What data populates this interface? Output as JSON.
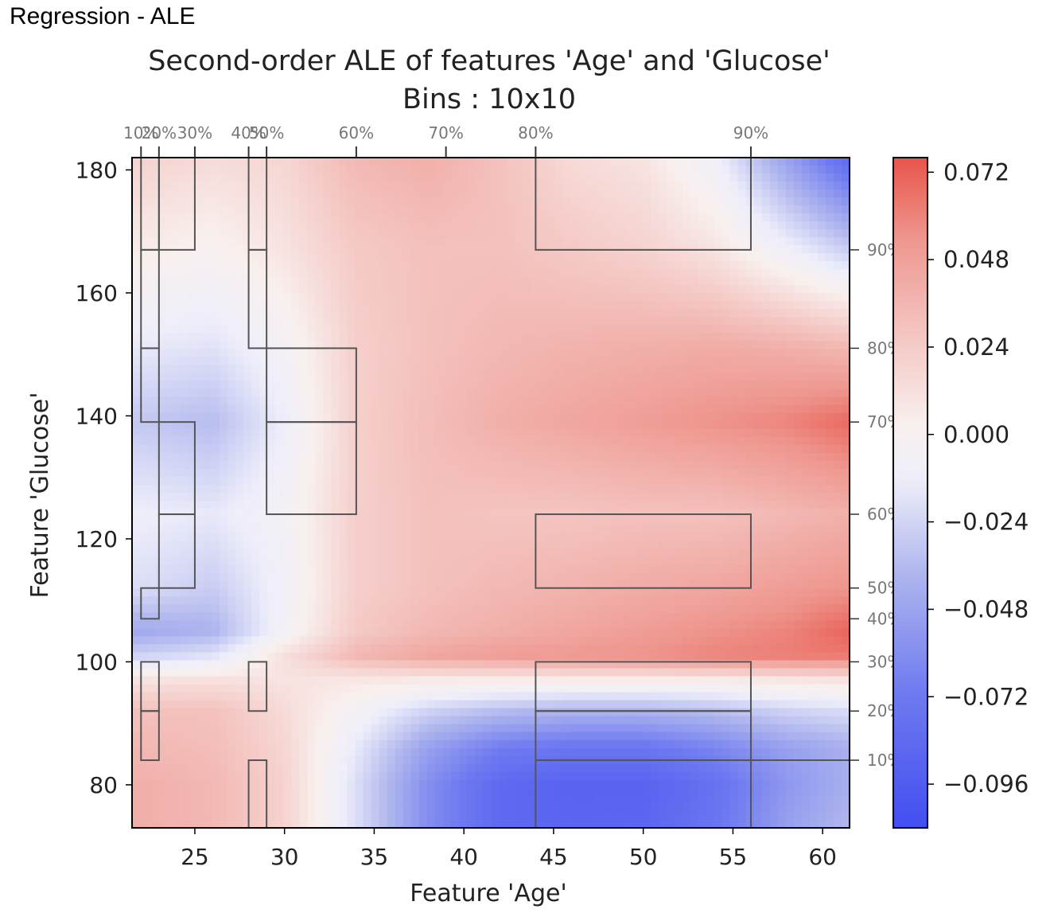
{
  "page_title": "Regression - ALE",
  "chart_data": {
    "type": "heatmap",
    "title": "Second-order ALE of features 'Age' and 'Glucose'",
    "subtitle": "Bins : 10x10",
    "xlabel": "Feature 'Age'",
    "ylabel": "Feature 'Glucose'",
    "xlim": [
      21.5,
      61.5
    ],
    "ylim": [
      73,
      182
    ],
    "x_ticks": [
      25,
      30,
      35,
      40,
      45,
      50,
      55,
      60
    ],
    "y_ticks": [
      80,
      100,
      120,
      140,
      160,
      180
    ],
    "x_quantiles": [
      {
        "label": "10%",
        "value": 22
      },
      {
        "label": "20%",
        "value": 23
      },
      {
        "label": "30%",
        "value": 25
      },
      {
        "label": "40%",
        "value": 28
      },
      {
        "label": "50%",
        "value": 29
      },
      {
        "label": "60%",
        "value": 34
      },
      {
        "label": "70%",
        "value": 39
      },
      {
        "label": "80%",
        "value": 44
      },
      {
        "label": "90%",
        "value": 56
      }
    ],
    "y_quantiles": [
      {
        "label": "10%",
        "value": 84
      },
      {
        "label": "20%",
        "value": 92
      },
      {
        "label": "30%",
        "value": 100
      },
      {
        "label": "40%",
        "value": 107
      },
      {
        "label": "50%",
        "value": 112
      },
      {
        "label": "60%",
        "value": 124
      },
      {
        "label": "70%",
        "value": 139
      },
      {
        "label": "80%",
        "value": 151
      },
      {
        "label": "90%",
        "value": 167
      }
    ],
    "colorbar": {
      "min": -0.108,
      "max": 0.076,
      "ticks": [
        "0.072",
        "0.048",
        "0.024",
        "0.000",
        "−0.024",
        "−0.048",
        "−0.072",
        "−0.096"
      ],
      "tick_values": [
        0.072,
        0.048,
        0.024,
        0.0,
        -0.024,
        -0.048,
        -0.072,
        -0.096
      ],
      "colormap": "coolwarm",
      "low_color": "#3b4cf0",
      "high_color": "#e8544a"
    },
    "grid_x": [
      22,
      26,
      30,
      34,
      38,
      42,
      46,
      50,
      54,
      58,
      62
    ],
    "grid_y": [
      73,
      80,
      86,
      92,
      97,
      101,
      105,
      112,
      124,
      139,
      151,
      167,
      182
    ],
    "grid_z": [
      [
        0.04,
        0.035,
        0.02,
        -0.02,
        -0.06,
        -0.085,
        -0.088,
        -0.087,
        -0.075,
        -0.05,
        -0.035
      ],
      [
        0.04,
        0.035,
        0.02,
        -0.02,
        -0.06,
        -0.085,
        -0.09,
        -0.09,
        -0.078,
        -0.055,
        -0.04
      ],
      [
        0.035,
        0.032,
        0.018,
        -0.015,
        -0.05,
        -0.07,
        -0.075,
        -0.075,
        -0.065,
        -0.05,
        -0.04
      ],
      [
        0.03,
        0.03,
        0.015,
        -0.005,
        -0.025,
        -0.035,
        -0.04,
        -0.04,
        -0.035,
        -0.025,
        -0.02
      ],
      [
        0.01,
        0.012,
        0.01,
        0.008,
        0.006,
        0.005,
        0.005,
        0.005,
        0.005,
        0.008,
        0.01
      ],
      [
        -0.025,
        -0.018,
        0.012,
        0.035,
        0.045,
        0.05,
        0.052,
        0.055,
        0.06,
        0.062,
        0.064
      ],
      [
        -0.045,
        -0.04,
        -0.005,
        0.025,
        0.035,
        0.04,
        0.045,
        0.05,
        0.055,
        0.06,
        0.072
      ],
      [
        -0.02,
        -0.028,
        -0.008,
        0.022,
        0.03,
        0.035,
        0.038,
        0.042,
        0.045,
        0.05,
        0.055
      ],
      [
        -0.012,
        -0.015,
        -0.005,
        0.022,
        0.03,
        0.028,
        0.028,
        0.03,
        0.03,
        0.035,
        0.04
      ],
      [
        -0.03,
        -0.035,
        -0.012,
        0.022,
        0.032,
        0.04,
        0.045,
        0.05,
        0.055,
        0.06,
        0.07
      ],
      [
        -0.015,
        -0.018,
        -0.005,
        0.022,
        0.03,
        0.035,
        0.038,
        0.04,
        0.042,
        0.04,
        0.035
      ],
      [
        0.005,
        0.0,
        0.01,
        0.025,
        0.03,
        0.03,
        0.025,
        0.02,
        0.01,
        -0.01,
        -0.03
      ],
      [
        0.02,
        0.015,
        0.018,
        0.035,
        0.04,
        0.03,
        0.015,
        0.01,
        -0.01,
        -0.05,
        -0.09
      ]
    ],
    "bin_rectangles": [
      {
        "x": [
          22,
          23
        ],
        "y": [
          167,
          182
        ]
      },
      {
        "x": [
          22,
          23
        ],
        "y": [
          151,
          167
        ]
      },
      {
        "x": [
          22,
          23
        ],
        "y": [
          139,
          151
        ]
      },
      {
        "x": [
          22,
          23
        ],
        "y": [
          107,
          112
        ]
      },
      {
        "x": [
          22,
          23
        ],
        "y": [
          92,
          100
        ]
      },
      {
        "x": [
          22,
          23
        ],
        "y": [
          84,
          92
        ]
      },
      {
        "x": [
          23,
          25
        ],
        "y": [
          167,
          182
        ]
      },
      {
        "x": [
          23,
          25
        ],
        "y": [
          124,
          139
        ]
      },
      {
        "x": [
          23,
          25
        ],
        "y": [
          112,
          124
        ]
      },
      {
        "x": [
          28,
          29
        ],
        "y": [
          167,
          182
        ]
      },
      {
        "x": [
          28,
          29
        ],
        "y": [
          151,
          167
        ]
      },
      {
        "x": [
          28,
          29
        ],
        "y": [
          92,
          100
        ]
      },
      {
        "x": [
          28,
          29
        ],
        "y": [
          73,
          84
        ]
      },
      {
        "x": [
          29,
          34
        ],
        "y": [
          139,
          151
        ]
      },
      {
        "x": [
          29,
          34
        ],
        "y": [
          124,
          139
        ]
      },
      {
        "x": [
          44,
          56
        ],
        "y": [
          167,
          182
        ]
      },
      {
        "x": [
          44,
          56
        ],
        "y": [
          112,
          124
        ]
      },
      {
        "x": [
          44,
          56
        ],
        "y": [
          92,
          100
        ]
      },
      {
        "x": [
          44,
          56
        ],
        "y": [
          84,
          92
        ]
      },
      {
        "x": [
          44,
          56
        ],
        "y": [
          73,
          84
        ]
      },
      {
        "x": [
          56,
          61.5
        ],
        "y": [
          84,
          84
        ]
      }
    ]
  }
}
